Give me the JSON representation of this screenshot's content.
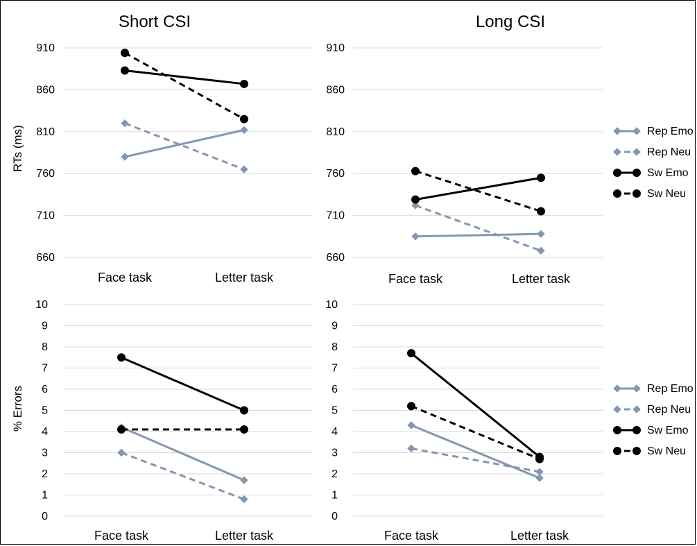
{
  "chart_data": [
    {
      "type": "line",
      "title": "Short CSI",
      "ylabel": "RTs (ms)",
      "categories": [
        "Face task",
        "Letter task"
      ],
      "ylim": [
        660,
        910
      ],
      "yticks": [
        660,
        710,
        760,
        810,
        860,
        910
      ],
      "grid": true,
      "legend": "",
      "series": [
        {
          "name": "Rep Emo",
          "values": [
            780,
            812
          ],
          "color": "#8497b0",
          "dash": false,
          "marker": "diamond"
        },
        {
          "name": "Rep Neu",
          "values": [
            820,
            765
          ],
          "color": "#8497b0",
          "dash": true,
          "marker": "diamond"
        },
        {
          "name": "Sw Emo",
          "values": [
            883,
            867
          ],
          "color": "#000000",
          "dash": false,
          "marker": "circle"
        },
        {
          "name": "Sw Neu",
          "values": [
            904,
            825
          ],
          "color": "#000000",
          "dash": true,
          "marker": "circle"
        }
      ]
    },
    {
      "type": "line",
      "title": "Long CSI",
      "ylabel": "",
      "categories": [
        "Face task",
        "Letter task"
      ],
      "ylim": [
        660,
        910
      ],
      "yticks": [
        660,
        710,
        760,
        810,
        860,
        910
      ],
      "grid": true,
      "legend": "right",
      "series": [
        {
          "name": "Rep Emo",
          "values": [
            685,
            688
          ],
          "color": "#8497b0",
          "dash": false,
          "marker": "diamond"
        },
        {
          "name": "Rep Neu",
          "values": [
            722,
            668
          ],
          "color": "#8497b0",
          "dash": true,
          "marker": "diamond"
        },
        {
          "name": "Sw Emo",
          "values": [
            729,
            755
          ],
          "color": "#000000",
          "dash": false,
          "marker": "circle"
        },
        {
          "name": "Sw Neu",
          "values": [
            763,
            715
          ],
          "color": "#000000",
          "dash": true,
          "marker": "circle"
        }
      ]
    },
    {
      "type": "line",
      "title": "",
      "ylabel": "% Errors",
      "categories": [
        "Face task",
        "Letter task"
      ],
      "ylim": [
        0,
        10
      ],
      "yticks": [
        0,
        1,
        2,
        3,
        4,
        5,
        6,
        7,
        8,
        9,
        10
      ],
      "grid": true,
      "legend": "",
      "series": [
        {
          "name": "Rep Emo",
          "values": [
            4.2,
            1.7
          ],
          "color": "#8497b0",
          "dash": false,
          "marker": "diamond"
        },
        {
          "name": "Rep Neu",
          "values": [
            3.0,
            0.8
          ],
          "color": "#8497b0",
          "dash": true,
          "marker": "diamond"
        },
        {
          "name": "Sw Emo",
          "values": [
            7.5,
            5.0
          ],
          "color": "#000000",
          "dash": false,
          "marker": "circle"
        },
        {
          "name": "Sw Neu",
          "values": [
            4.1,
            4.1
          ],
          "color": "#000000",
          "dash": true,
          "marker": "circle"
        }
      ]
    },
    {
      "type": "line",
      "title": "",
      "ylabel": "",
      "categories": [
        "Face task",
        "Letter task"
      ],
      "ylim": [
        0,
        10
      ],
      "yticks": [
        0,
        1,
        2,
        3,
        4,
        5,
        6,
        7,
        8,
        9,
        10
      ],
      "grid": true,
      "legend": "right",
      "series": [
        {
          "name": "Rep Emo",
          "values": [
            4.3,
            1.8
          ],
          "color": "#8497b0",
          "dash": false,
          "marker": "diamond"
        },
        {
          "name": "Rep Neu",
          "values": [
            3.2,
            2.1
          ],
          "color": "#8497b0",
          "dash": true,
          "marker": "diamond"
        },
        {
          "name": "Sw Emo",
          "values": [
            7.7,
            2.8
          ],
          "color": "#000000",
          "dash": false,
          "marker": "circle"
        },
        {
          "name": "Sw Neu",
          "values": [
            5.2,
            2.7
          ],
          "color": "#000000",
          "dash": true,
          "marker": "circle"
        }
      ]
    }
  ]
}
